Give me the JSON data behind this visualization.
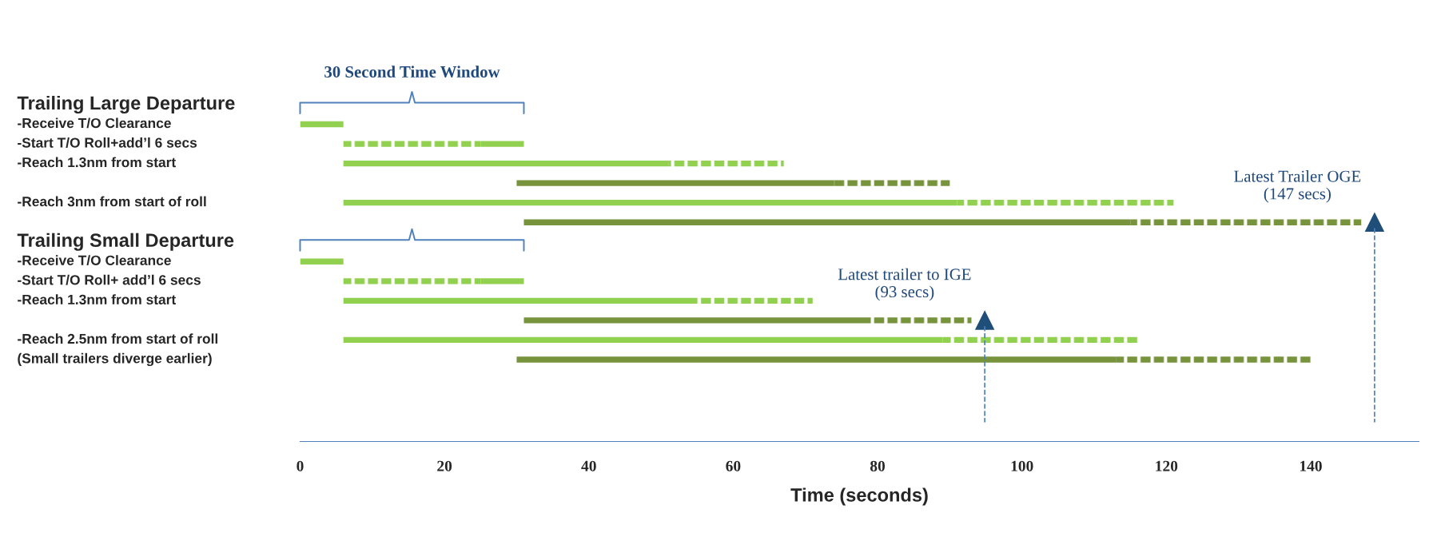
{
  "chart_data": {
    "type": "bar",
    "orientation": "horizontal",
    "xlabel": "Time (seconds)",
    "categories": [
      "Trailing Large Departure",
      "-Receive T/O Clearance",
      "-Start T/O Roll+add’l 6 secs",
      "-Reach 1.3nm from start",
      null,
      "-Reach 3nm from start of roll",
      null,
      "Trailing Small Departure",
      "-Receive T/O Clearance",
      "-Start T/O Roll+ add’l 6 secs",
      "-Reach 1.3nm from start",
      null,
      "-Reach 2.5nm from start of roll",
      "(Small trailers diverge earlier)"
    ],
    "series": [
      {
        "line_style": "dotted",
        "colors": [
          null,
          null,
          "#92d050",
          null,
          null,
          null,
          null,
          null,
          null,
          "#92d050",
          null,
          null,
          null,
          null
        ],
        "base": [
          null,
          null,
          6,
          null,
          null,
          null,
          null,
          null,
          null,
          6,
          null,
          null,
          null,
          null
        ],
        "values": [
          null,
          null,
          19,
          null,
          null,
          null,
          null,
          null,
          null,
          19,
          null,
          null,
          null,
          null
        ]
      },
      {
        "line_style": "solid",
        "colors": [
          null,
          "#92d050",
          "#92d050",
          "#92d050",
          "#77933c",
          "#92d050",
          "#77933c",
          null,
          "#92d050",
          "#92d050",
          "#92d050",
          "#77933c",
          "#92d050",
          "#77933c"
        ],
        "base": [
          null,
          0,
          25,
          6,
          30,
          6,
          31,
          null,
          0,
          25,
          6,
          31,
          6,
          30
        ],
        "values": [
          null,
          6,
          6,
          45,
          44,
          85,
          84,
          null,
          6,
          6,
          49,
          48,
          83,
          83
        ]
      },
      {
        "line_style": "dotted",
        "colors": [
          null,
          null,
          null,
          "#92d050",
          "#77933c",
          "#92d050",
          "#77933c",
          null,
          null,
          null,
          "#92d050",
          "#77933c",
          "#92d050",
          "#77933c"
        ],
        "base": [
          null,
          null,
          null,
          51,
          74,
          91,
          115,
          null,
          null,
          null,
          55,
          79,
          89,
          113
        ],
        "values": [
          null,
          null,
          null,
          16,
          16,
          30,
          32,
          null,
          null,
          null,
          16,
          14,
          27,
          27
        ]
      }
    ],
    "xlim": [
      0,
      155
    ],
    "xticks": [
      0,
      20,
      40,
      60,
      80,
      100,
      120,
      140
    ],
    "annotations": [
      "30 Second Time Window",
      "Latest Trailer OGE\n(147 secs)",
      "Latest trailer to IGE\n(93 secs)"
    ]
  }
}
